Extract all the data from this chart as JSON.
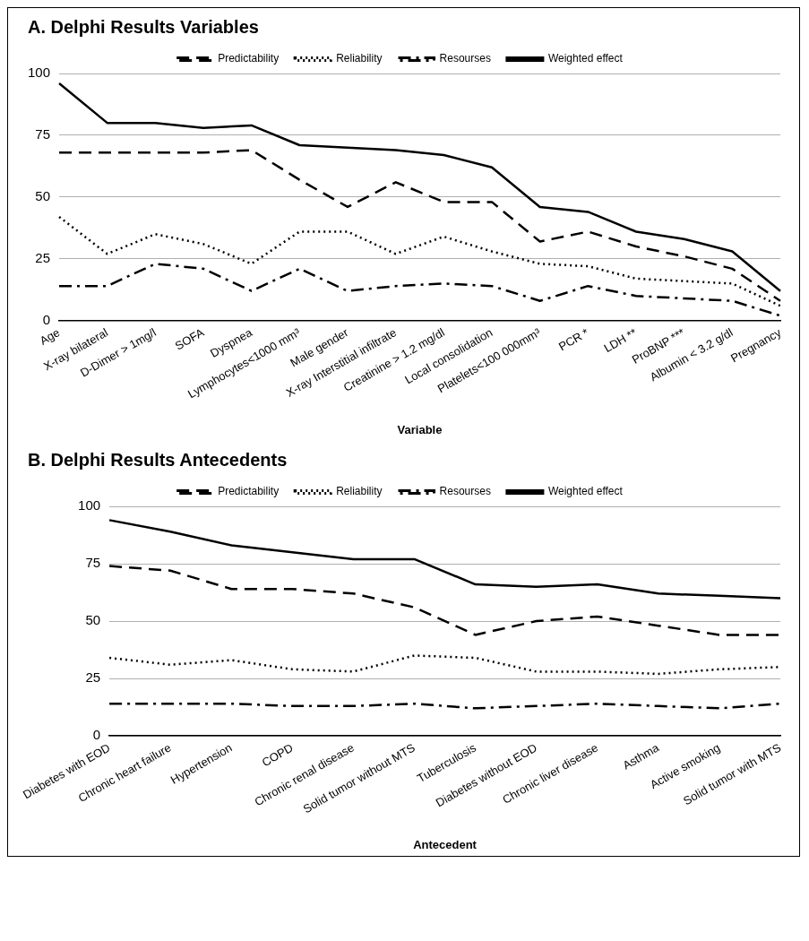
{
  "chart_data": [
    {
      "type": "line",
      "title": "A. Delphi Results Variables",
      "xlabel": "Variable",
      "categories": [
        "Age",
        "X-ray bilateral",
        "D-Dimer > 1mg/l",
        "SOFA",
        "Dyspnea",
        "Lymphocytes<1000 mm³",
        "Male gender",
        "X-ray Interstitial infiltrate",
        "Creatinine > 1.2 mg/dl",
        "Local consolidation",
        "Platelets<100 000mm³",
        "PCR *",
        "LDH **",
        "ProBNP ***",
        "Albumin < 3.2 g/dl",
        "Pregnancy"
      ],
      "series": [
        {
          "name": "Predictability",
          "color": "#000000",
          "line_style": "dashed",
          "values": [
            68,
            68,
            68,
            68,
            69,
            57,
            46,
            56,
            48,
            48,
            32,
            36,
            30,
            26,
            21,
            8
          ]
        },
        {
          "name": "Reliability",
          "color": "#000000",
          "line_style": "dotted",
          "values": [
            42,
            27,
            35,
            31,
            23,
            36,
            36,
            27,
            34,
            28,
            23,
            22,
            17,
            16,
            15,
            6
          ]
        },
        {
          "name": "Resourses",
          "color": "#000000",
          "line_style": "dashdot",
          "values": [
            14,
            14,
            23,
            21,
            12,
            21,
            12,
            14,
            15,
            14,
            8,
            14,
            10,
            9,
            8,
            2
          ]
        },
        {
          "name": "Weighted effect",
          "color": "#000000",
          "line_style": "solid",
          "values": [
            96,
            80,
            80,
            78,
            79,
            71,
            70,
            69,
            67,
            62,
            46,
            44,
            36,
            33,
            28,
            12
          ]
        }
      ],
      "ylim": [
        0,
        100
      ],
      "yticks": [
        0,
        25,
        50,
        75,
        100
      ],
      "grid": "y",
      "legend": "top",
      "marker": "none"
    },
    {
      "type": "line",
      "title": "B. Delphi Results Antecedents",
      "xlabel": "Antecedent",
      "categories": [
        "Diabetes with EOD",
        "Chronic heart failure",
        "Hypertension",
        "COPD",
        "Chronic renal disease",
        "Solid tumor without MTS",
        "Tuberculosis",
        "Diabetes without EOD",
        "Chronic liver disease",
        "Asthma",
        "Active smoking",
        "Solid tumor with MTS"
      ],
      "series": [
        {
          "name": "Predictability",
          "color": "#000000",
          "line_style": "dashed",
          "values": [
            74,
            72,
            64,
            64,
            62,
            56,
            44,
            50,
            52,
            48,
            44,
            44
          ]
        },
        {
          "name": "Reliability",
          "color": "#000000",
          "line_style": "dotted",
          "values": [
            34,
            31,
            33,
            29,
            28,
            35,
            34,
            28,
            28,
            27,
            29,
            30
          ]
        },
        {
          "name": "Resourses",
          "color": "#000000",
          "line_style": "dashdot",
          "values": [
            14,
            14,
            14,
            13,
            13,
            14,
            12,
            13,
            14,
            13,
            12,
            14
          ]
        },
        {
          "name": "Weighted effect",
          "color": "#000000",
          "line_style": "solid",
          "values": [
            94,
            89,
            83,
            80,
            77,
            77,
            66,
            65,
            66,
            62,
            61,
            60
          ]
        }
      ],
      "ylim": [
        0,
        100
      ],
      "yticks": [
        0,
        25,
        50,
        75,
        100
      ],
      "grid": "y",
      "legend": "top",
      "marker": "none"
    }
  ]
}
